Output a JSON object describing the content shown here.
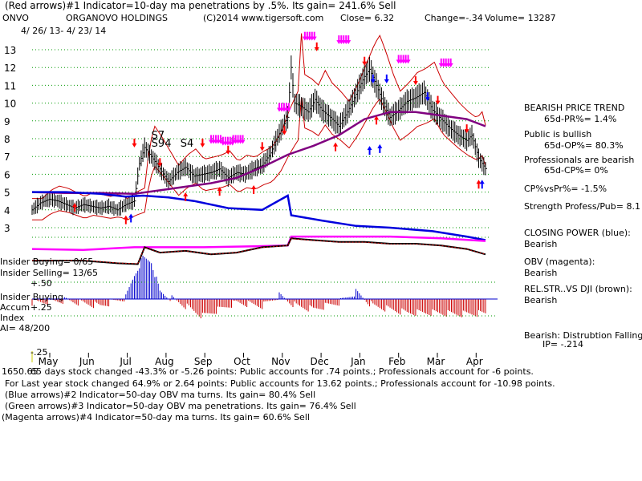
{
  "header": {
    "line1": "(Red arrows)#1 Indicator=10-day ma penetrations by .5%. Its gain= 241.6% Sell",
    "symbol": "ONVO",
    "company": "ORGANOVO HOLDINGS",
    "copyright": "(C)2014 www.tigersoft.com",
    "close": "Close=  6.32",
    "change": "Change=-.34",
    "volume": "Volume= 13287",
    "daterange": "4/ 26/ 13-  4/ 23/ 14"
  },
  "side": {
    "trend_title": "BEARISH PRICE TREND",
    "pr": "65d-PR%= 1.4%",
    "public": "Public is bullish",
    "op": "65d-OP%= 80.3%",
    "professionals": "Professionals are bearish",
    "cp": "65d-CP%= 0%",
    "cpvspr": "CP%vsPr%= -1.5%",
    "strength": "Strength Profess/Pub= 8.1",
    "closing_power": "CLOSING POWER (blue):",
    "closing_power_val": "Bearish",
    "obv": "OBV (magenta):",
    "obv_val": "Bearish",
    "relstr": "REL.STR..VS DJI (brown):",
    "relstr_val": "Bearish",
    "bearish_dist": "Bearish: Distrubtion Falling",
    "ip": "IP= -.214"
  },
  "insider": {
    "buying": "Insider Buying= 0/65",
    "selling": "Insider Selling= 13/65",
    "label_lines": [
      "Insider Buying",
      "Accum",
      "Index"
    ],
    "ai": "AI= 48/200",
    "plus50": "+.50",
    "plus25": "+.25",
    "minus25": "-.25"
  },
  "footer": {
    "line1": "65 days stock changed -43.3% or -5.26 points:  Public accounts for  .74 points.;  Professionals account for -6 points.",
    "line2": "For Last year stock changed  64.9% or  2.64 points:  Public accounts for  13.62 points.;  Professionals account for -10.98 points.",
    "line3": "(Blue arrows)#2 Indicator=50-day OBV ma turns. Its gain= 80.4% Sell",
    "line4": "(Green arrows)#3 Indicator=50-day OBV ma penetrations. Its gain= 76.4% Sell",
    "line5": "(Magenta arrows)#4 Indicator=50-day ma turns. Its gain= 60.6% Sell",
    "overlap": "1650.65"
  },
  "colors": {
    "price": "#000000",
    "band": "#cc0000",
    "ma50": "#800080",
    "closing_power": "#0000dd",
    "obv": "#ff00ff",
    "relstr": "#000000",
    "accum_pos": "#0000cc",
    "accum_neg": "#cc0000",
    "grid": "#009900",
    "arrow_red": "#ff0000",
    "arrow_blue": "#0000ff",
    "arrow_magenta": "#ff00ff"
  },
  "chart_data": {
    "type": "line",
    "y_ticks": [
      3,
      4,
      5,
      6,
      7,
      8,
      9,
      10,
      11,
      12,
      13
    ],
    "ylim": [
      3,
      13.8
    ],
    "months": [
      "May",
      "Jun",
      "Jul",
      "Aug",
      "Sep",
      "Oct",
      "Nov",
      "Dec",
      "Jan",
      "Feb",
      "Mar",
      "Apr"
    ],
    "annotations": [
      "S7",
      "S94",
      "S4"
    ],
    "price_series": [
      [
        0,
        4.0
      ],
      [
        5,
        4.4
      ],
      [
        10,
        4.6
      ],
      [
        15,
        4.5
      ],
      [
        20,
        4.3
      ],
      [
        25,
        4.1
      ],
      [
        30,
        4.3
      ],
      [
        35,
        4.2
      ],
      [
        40,
        4.1
      ],
      [
        45,
        4.2
      ],
      [
        50,
        4.0
      ],
      [
        55,
        4.3
      ],
      [
        60,
        4.5
      ],
      [
        63,
        6.6
      ],
      [
        66,
        7.5
      ],
      [
        70,
        7.0
      ],
      [
        75,
        6.3
      ],
      [
        80,
        5.6
      ],
      [
        85,
        6.1
      ],
      [
        90,
        6.4
      ],
      [
        95,
        5.9
      ],
      [
        100,
        6.0
      ],
      [
        105,
        6.1
      ],
      [
        110,
        6.3
      ],
      [
        115,
        5.8
      ],
      [
        120,
        6.1
      ],
      [
        125,
        6.0
      ],
      [
        130,
        6.3
      ],
      [
        135,
        6.5
      ],
      [
        140,
        7.2
      ],
      [
        145,
        8.3
      ],
      [
        150,
        9.2
      ],
      [
        152,
        12.0
      ],
      [
        154,
        10.0
      ],
      [
        158,
        9.8
      ],
      [
        162,
        9.5
      ],
      [
        166,
        10.2
      ],
      [
        170,
        9.6
      ],
      [
        175,
        9.2
      ],
      [
        180,
        8.7
      ],
      [
        185,
        9.5
      ],
      [
        190,
        10.5
      ],
      [
        195,
        11.5
      ],
      [
        198,
        11.9
      ],
      [
        202,
        11.0
      ],
      [
        206,
        10.0
      ],
      [
        210,
        9.2
      ],
      [
        215,
        9.6
      ],
      [
        220,
        10.1
      ],
      [
        225,
        10.3
      ],
      [
        230,
        10.6
      ],
      [
        235,
        9.6
      ],
      [
        240,
        9.1
      ],
      [
        245,
        8.6
      ],
      [
        250,
        8.2
      ],
      [
        255,
        7.9
      ],
      [
        258,
        8.2
      ],
      [
        262,
        6.9
      ],
      [
        266,
        6.32
      ]
    ],
    "ma50_series": [
      [
        0,
        5.0
      ],
      [
        20,
        4.95
      ],
      [
        40,
        4.95
      ],
      [
        60,
        4.9
      ],
      [
        75,
        5.1
      ],
      [
        90,
        5.3
      ],
      [
        105,
        5.5
      ],
      [
        120,
        5.8
      ],
      [
        135,
        6.4
      ],
      [
        150,
        7.1
      ],
      [
        165,
        7.6
      ],
      [
        180,
        8.2
      ],
      [
        195,
        9.1
      ],
      [
        210,
        9.5
      ],
      [
        225,
        9.5
      ],
      [
        240,
        9.3
      ],
      [
        255,
        9.1
      ],
      [
        266,
        8.7
      ]
    ],
    "closing_power_series": [
      [
        0,
        5.0
      ],
      [
        20,
        5.0
      ],
      [
        40,
        4.9
      ],
      [
        55,
        4.75
      ],
      [
        65,
        4.8
      ],
      [
        80,
        4.7
      ],
      [
        95,
        4.5
      ],
      [
        115,
        4.1
      ],
      [
        135,
        4.0
      ],
      [
        150,
        4.8
      ],
      [
        152,
        3.7
      ],
      [
        170,
        3.4
      ],
      [
        190,
        3.1
      ],
      [
        210,
        3.0
      ],
      [
        235,
        2.8
      ],
      [
        255,
        2.5
      ],
      [
        266,
        2.3
      ]
    ],
    "obv_series": [
      [
        0,
        1.8
      ],
      [
        30,
        1.75
      ],
      [
        60,
        1.9
      ],
      [
        75,
        1.9
      ],
      [
        100,
        1.9
      ],
      [
        130,
        1.95
      ],
      [
        150,
        2.0
      ],
      [
        152,
        2.5
      ],
      [
        180,
        2.5
      ],
      [
        210,
        2.5
      ],
      [
        240,
        2.4
      ],
      [
        266,
        2.25
      ]
    ],
    "relstr_series": [
      [
        0,
        1.15
      ],
      [
        15,
        1.15
      ],
      [
        30,
        1.15
      ],
      [
        50,
        1.0
      ],
      [
        62,
        0.95
      ],
      [
        66,
        1.9
      ],
      [
        75,
        1.6
      ],
      [
        90,
        1.7
      ],
      [
        105,
        1.5
      ],
      [
        120,
        1.6
      ],
      [
        135,
        1.9
      ],
      [
        150,
        2.0
      ],
      [
        152,
        2.4
      ],
      [
        165,
        2.3
      ],
      [
        180,
        2.2
      ],
      [
        195,
        2.2
      ],
      [
        210,
        2.1
      ],
      [
        225,
        2.1
      ],
      [
        240,
        2.0
      ],
      [
        255,
        1.8
      ],
      [
        266,
        1.5
      ]
    ],
    "accum_series": [
      [
        0,
        -0.05
      ],
      [
        20,
        -0.02
      ],
      [
        40,
        -0.1
      ],
      [
        55,
        0.02
      ],
      [
        60,
        0.35
      ],
      [
        65,
        0.6
      ],
      [
        70,
        0.55
      ],
      [
        75,
        0.1
      ],
      [
        90,
        -0.1
      ],
      [
        100,
        -0.25
      ],
      [
        110,
        -0.15
      ],
      [
        120,
        -0.05
      ],
      [
        135,
        -0.1
      ],
      [
        145,
        0.05
      ],
      [
        155,
        -0.1
      ],
      [
        165,
        -0.15
      ],
      [
        180,
        -0.05
      ],
      [
        190,
        0.1
      ],
      [
        200,
        -0.1
      ],
      [
        210,
        -0.15
      ],
      [
        220,
        -0.2
      ],
      [
        235,
        -0.2
      ],
      [
        250,
        -0.22
      ],
      [
        266,
        -0.21
      ]
    ],
    "arrows": {
      "red_down": [
        [
          60,
          7.6
        ],
        [
          75,
          6.5
        ],
        [
          100,
          7.6
        ],
        [
          115,
          7.2
        ],
        [
          135,
          7.4
        ],
        [
          148,
          8.3
        ],
        [
          167,
          13.0
        ],
        [
          195,
          12.2
        ],
        [
          225,
          11.1
        ],
        [
          238,
          10.0
        ],
        [
          255,
          8.4
        ]
      ],
      "red_up": [
        [
          25,
          4.3
        ],
        [
          55,
          3.6
        ],
        [
          90,
          4.9
        ],
        [
          110,
          5.2
        ],
        [
          130,
          5.3
        ],
        [
          178,
          7.7
        ],
        [
          202,
          9.2
        ],
        [
          262,
          5.6
        ]
      ],
      "blue_down": [
        [
          200,
          11.2
        ],
        [
          208,
          11.2
        ],
        [
          232,
          10.2
        ]
      ],
      "blue_up": [
        [
          58,
          3.7
        ],
        [
          198,
          7.5
        ],
        [
          204,
          7.6
        ],
        [
          264,
          5.6
        ]
      ],
      "magenta_down": [
        [
          105,
          7.8
        ],
        [
          112,
          7.7
        ],
        [
          118,
          7.8
        ],
        [
          145,
          9.6
        ],
        [
          160,
          13.6
        ],
        [
          180,
          13.4
        ],
        [
          215,
          12.3
        ],
        [
          240,
          12.1
        ]
      ]
    }
  }
}
